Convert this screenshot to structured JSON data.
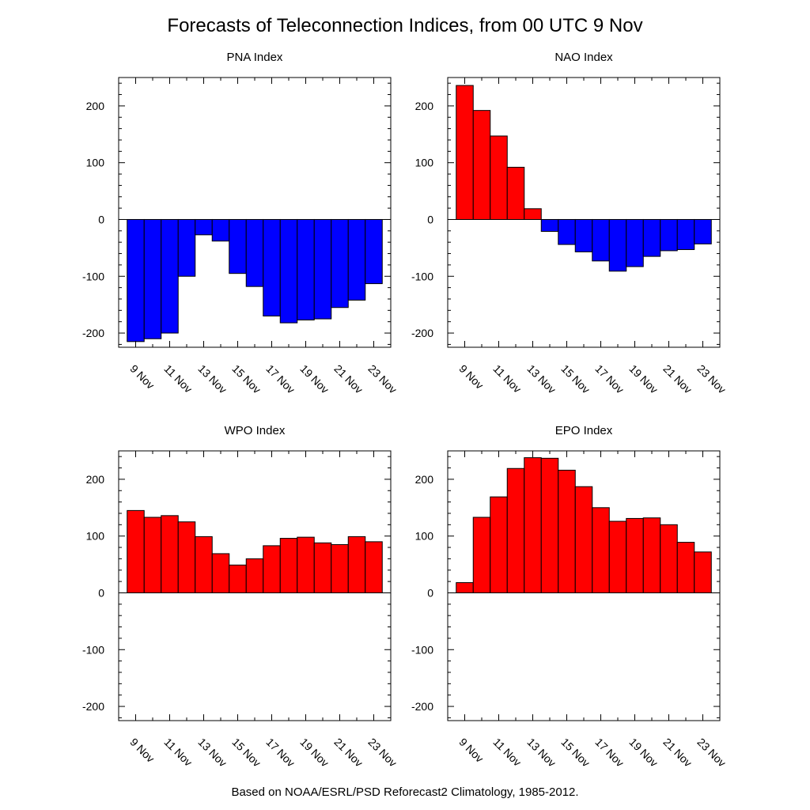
{
  "figure": {
    "title": "Forecasts of Teleconnection Indices, from 00 UTC 9 Nov",
    "footer": "Based on NOAA/ESRL/PSD Reforecast2 Climatology, 1985-2012."
  },
  "colors": {
    "positive": "#ff0000",
    "negative": "#0000ff",
    "outline": "#000000",
    "background": "#ffffff"
  },
  "chart_data": [
    {
      "type": "bar",
      "title": "PNA Index",
      "xlabel": "",
      "ylabel": "",
      "ylim": [
        -225,
        250
      ],
      "yticks": [
        -200,
        -100,
        0,
        100,
        200
      ],
      "x_tick_labels": [
        "9 Nov",
        "11 Nov",
        "13 Nov",
        "15 Nov",
        "17 Nov",
        "19 Nov",
        "21 Nov",
        "23 Nov"
      ],
      "categories": [
        "9 Nov",
        "10 Nov",
        "11 Nov",
        "12 Nov",
        "13 Nov",
        "14 Nov",
        "15 Nov",
        "16 Nov",
        "17 Nov",
        "18 Nov",
        "19 Nov",
        "20 Nov",
        "21 Nov",
        "22 Nov",
        "23 Nov"
      ],
      "values": [
        -215,
        -210,
        -200,
        -100,
        -27,
        -38,
        -95,
        -118,
        -170,
        -182,
        -177,
        -175,
        -155,
        -142,
        -113
      ],
      "grid": false,
      "legend": "none"
    },
    {
      "type": "bar",
      "title": "NAO Index",
      "xlabel": "",
      "ylabel": "",
      "ylim": [
        -225,
        250
      ],
      "yticks": [
        -200,
        -100,
        0,
        100,
        200
      ],
      "x_tick_labels": [
        "9 Nov",
        "11 Nov",
        "13 Nov",
        "15 Nov",
        "17 Nov",
        "19 Nov",
        "21 Nov",
        "23 Nov"
      ],
      "categories": [
        "9 Nov",
        "10 Nov",
        "11 Nov",
        "12 Nov",
        "13 Nov",
        "14 Nov",
        "15 Nov",
        "16 Nov",
        "17 Nov",
        "18 Nov",
        "19 Nov",
        "20 Nov",
        "21 Nov",
        "22 Nov",
        "23 Nov"
      ],
      "values": [
        236,
        192,
        147,
        92,
        19,
        -21,
        -44,
        -57,
        -73,
        -91,
        -83,
        -65,
        -55,
        -53,
        -43
      ],
      "grid": false,
      "legend": "none"
    },
    {
      "type": "bar",
      "title": "WPO Index",
      "xlabel": "",
      "ylabel": "",
      "ylim": [
        -225,
        250
      ],
      "yticks": [
        -200,
        -100,
        0,
        100,
        200
      ],
      "x_tick_labels": [
        "9 Nov",
        "11 Nov",
        "13 Nov",
        "15 Nov",
        "17 Nov",
        "19 Nov",
        "21 Nov",
        "23 Nov"
      ],
      "categories": [
        "9 Nov",
        "10 Nov",
        "11 Nov",
        "12 Nov",
        "13 Nov",
        "14 Nov",
        "15 Nov",
        "16 Nov",
        "17 Nov",
        "18 Nov",
        "19 Nov",
        "20 Nov",
        "21 Nov",
        "22 Nov",
        "23 Nov"
      ],
      "values": [
        145,
        133,
        136,
        125,
        99,
        69,
        49,
        60,
        83,
        96,
        98,
        88,
        85,
        99,
        90
      ],
      "grid": false,
      "legend": "none"
    },
    {
      "type": "bar",
      "title": "EPO Index",
      "xlabel": "",
      "ylabel": "",
      "ylim": [
        -225,
        250
      ],
      "yticks": [
        -200,
        -100,
        0,
        100,
        200
      ],
      "x_tick_labels": [
        "9 Nov",
        "11 Nov",
        "13 Nov",
        "15 Nov",
        "17 Nov",
        "19 Nov",
        "21 Nov",
        "23 Nov"
      ],
      "categories": [
        "9 Nov",
        "10 Nov",
        "11 Nov",
        "12 Nov",
        "13 Nov",
        "14 Nov",
        "15 Nov",
        "16 Nov",
        "17 Nov",
        "18 Nov",
        "19 Nov",
        "20 Nov",
        "21 Nov",
        "22 Nov",
        "23 Nov"
      ],
      "values": [
        18,
        133,
        169,
        219,
        238,
        237,
        216,
        187,
        150,
        126,
        131,
        132,
        120,
        89,
        72
      ],
      "grid": false,
      "legend": "none"
    }
  ]
}
